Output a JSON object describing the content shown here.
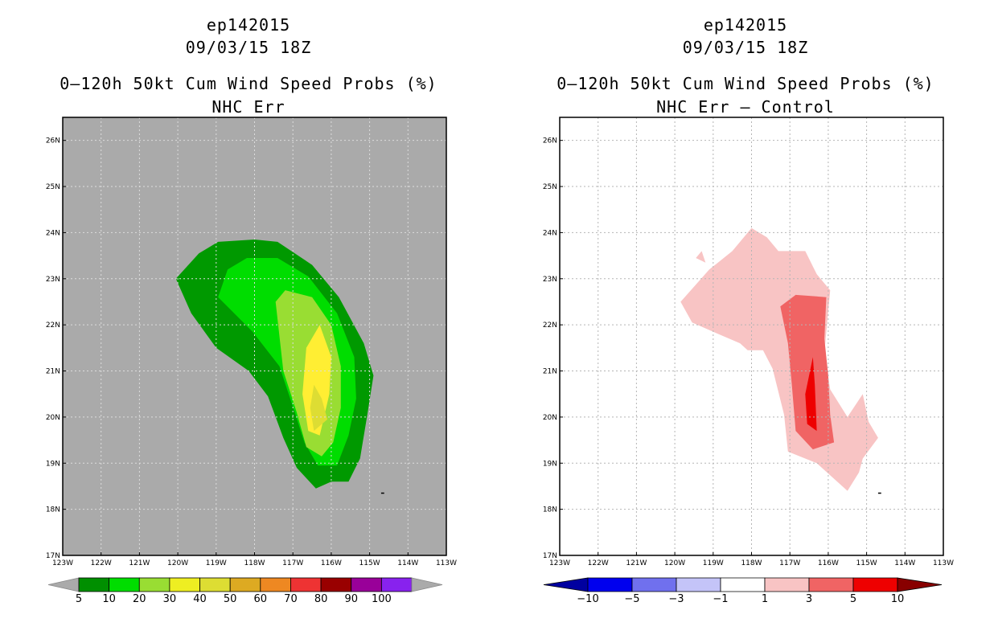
{
  "chart_data": [
    {
      "type": "contour-map",
      "storm_id": "ep142015",
      "datetime": "09/03/15 18Z",
      "title": "0–120h 50kt Cum Wind Speed Probs (%)",
      "subtitle": "NHC Err",
      "xlim": [
        -123,
        -113
      ],
      "ylim": [
        17,
        26.5
      ],
      "x_ticks": [
        {
          "v": -123,
          "label": "123W"
        },
        {
          "v": -122,
          "label": "122W"
        },
        {
          "v": -121,
          "label": "121W"
        },
        {
          "v": -120,
          "label": "120W"
        },
        {
          "v": -119,
          "label": "119W"
        },
        {
          "v": -118,
          "label": "118W"
        },
        {
          "v": -117,
          "label": "117W"
        },
        {
          "v": -116,
          "label": "116W"
        },
        {
          "v": -115,
          "label": "115W"
        },
        {
          "v": -114,
          "label": "114W"
        },
        {
          "v": -113,
          "label": "113W"
        }
      ],
      "y_ticks": [
        {
          "v": 17,
          "label": "17N"
        },
        {
          "v": 18,
          "label": "18N"
        },
        {
          "v": 19,
          "label": "19N"
        },
        {
          "v": 20,
          "label": "20N"
        },
        {
          "v": 21,
          "label": "21N"
        },
        {
          "v": 22,
          "label": "22N"
        },
        {
          "v": 23,
          "label": "23N"
        },
        {
          "v": 24,
          "label": "24N"
        },
        {
          "v": 25,
          "label": "25N"
        },
        {
          "v": 26,
          "label": "26N"
        }
      ],
      "background": "#aaaaaa",
      "regions": [
        {
          "level": 5,
          "color": "#009900",
          "points": [
            [
              -120.05,
              23.0
            ],
            [
              -119.45,
              23.55
            ],
            [
              -118.95,
              23.8
            ],
            [
              -118.0,
              23.85
            ],
            [
              -117.4,
              23.8
            ],
            [
              -116.5,
              23.3
            ],
            [
              -115.8,
              22.6
            ],
            [
              -115.15,
              21.6
            ],
            [
              -114.9,
              20.9
            ],
            [
              -115.05,
              20.1
            ],
            [
              -115.25,
              19.1
            ],
            [
              -115.55,
              18.6
            ],
            [
              -116.0,
              18.6
            ],
            [
              -116.4,
              18.45
            ],
            [
              -116.9,
              18.9
            ],
            [
              -117.25,
              19.55
            ],
            [
              -117.65,
              20.45
            ],
            [
              -118.15,
              21.0
            ],
            [
              -119.0,
              21.5
            ],
            [
              -119.65,
              22.25
            ],
            [
              -120.05,
              23.0
            ]
          ]
        },
        {
          "level": 10,
          "color": "#00dd00",
          "points": [
            [
              -118.95,
              22.6
            ],
            [
              -118.7,
              23.2
            ],
            [
              -118.2,
              23.45
            ],
            [
              -117.4,
              23.45
            ],
            [
              -116.6,
              23.05
            ],
            [
              -115.85,
              22.25
            ],
            [
              -115.4,
              21.3
            ],
            [
              -115.35,
              20.4
            ],
            [
              -115.55,
              19.6
            ],
            [
              -115.85,
              18.95
            ],
            [
              -116.35,
              18.95
            ],
            [
              -116.7,
              19.45
            ],
            [
              -116.95,
              20.1
            ],
            [
              -117.35,
              21.1
            ],
            [
              -118.05,
              21.85
            ],
            [
              -118.95,
              22.6
            ]
          ]
        },
        {
          "level": 20,
          "color": "#99dd33",
          "points": [
            [
              -117.45,
              22.5
            ],
            [
              -117.2,
              22.75
            ],
            [
              -116.5,
              22.6
            ],
            [
              -116.0,
              22.0
            ],
            [
              -115.75,
              21.1
            ],
            [
              -115.75,
              20.2
            ],
            [
              -115.95,
              19.45
            ],
            [
              -116.25,
              19.15
            ],
            [
              -116.65,
              19.35
            ],
            [
              -116.9,
              20.1
            ],
            [
              -117.25,
              21.0
            ],
            [
              -117.45,
              22.5
            ]
          ]
        },
        {
          "level": 30,
          "color": "#ffee33",
          "points": [
            [
              -116.65,
              21.5
            ],
            [
              -116.3,
              22.0
            ],
            [
              -116.0,
              21.3
            ],
            [
              -116.05,
              20.5
            ],
            [
              -116.3,
              19.6
            ],
            [
              -116.6,
              19.7
            ],
            [
              -116.75,
              20.5
            ],
            [
              -116.65,
              21.5
            ]
          ]
        },
        {
          "level": 40,
          "color": "#dddd33",
          "points": [
            [
              -116.45,
              20.7
            ],
            [
              -116.25,
              20.4
            ],
            [
              -116.1,
              19.95
            ],
            [
              -116.45,
              19.7
            ],
            [
              -116.55,
              20.2
            ],
            [
              -116.45,
              20.7
            ]
          ]
        }
      ],
      "colorbar": {
        "labels": [
          "5",
          "10",
          "20",
          "30",
          "40",
          "50",
          "60",
          "70",
          "80",
          "90",
          "100"
        ],
        "colors": [
          "#008f00",
          "#00dd00",
          "#99dd33",
          "#eeee22",
          "#dddd33",
          "#ddaa22",
          "#ee8822",
          "#ee3333",
          "#990000",
          "#990099",
          "#8822ee"
        ]
      }
    },
    {
      "type": "contour-map",
      "storm_id": "ep142015",
      "datetime": "09/03/15 18Z",
      "title": "0–120h 50kt Cum Wind Speed Probs (%)",
      "subtitle": "NHC Err – Control",
      "xlim": [
        -123,
        -113
      ],
      "ylim": [
        17,
        26.5
      ],
      "x_ticks": [
        {
          "v": -123,
          "label": "123W"
        },
        {
          "v": -122,
          "label": "122W"
        },
        {
          "v": -121,
          "label": "121W"
        },
        {
          "v": -120,
          "label": "120W"
        },
        {
          "v": -119,
          "label": "119W"
        },
        {
          "v": -118,
          "label": "118W"
        },
        {
          "v": -117,
          "label": "117W"
        },
        {
          "v": -116,
          "label": "116W"
        },
        {
          "v": -115,
          "label": "115W"
        },
        {
          "v": -114,
          "label": "114W"
        },
        {
          "v": -113,
          "label": "113W"
        }
      ],
      "y_ticks": [
        {
          "v": 17,
          "label": "17N"
        },
        {
          "v": 18,
          "label": "18N"
        },
        {
          "v": 19,
          "label": "19N"
        },
        {
          "v": 20,
          "label": "20N"
        },
        {
          "v": 21,
          "label": "21N"
        },
        {
          "v": 22,
          "label": "22N"
        },
        {
          "v": 23,
          "label": "23N"
        },
        {
          "v": 24,
          "label": "24N"
        },
        {
          "v": 25,
          "label": "25N"
        },
        {
          "v": 26,
          "label": "26N"
        }
      ],
      "background": "#ffffff",
      "regions": [
        {
          "level": 1,
          "color": "#f8c4c4",
          "points": [
            [
              -119.85,
              22.5
            ],
            [
              -119.1,
              23.2
            ],
            [
              -118.5,
              23.6
            ],
            [
              -118.0,
              24.1
            ],
            [
              -117.6,
              23.9
            ],
            [
              -117.3,
              23.6
            ],
            [
              -116.6,
              23.6
            ],
            [
              -116.3,
              23.1
            ],
            [
              -115.95,
              22.75
            ],
            [
              -116.1,
              21.4
            ],
            [
              -115.95,
              20.6
            ],
            [
              -115.5,
              20.0
            ],
            [
              -115.1,
              20.5
            ],
            [
              -114.95,
              19.9
            ],
            [
              -114.7,
              19.55
            ],
            [
              -115.1,
              19.1
            ],
            [
              -115.2,
              18.8
            ],
            [
              -115.5,
              18.4
            ],
            [
              -116.3,
              19.0
            ],
            [
              -117.05,
              19.25
            ],
            [
              -117.15,
              20.05
            ],
            [
              -117.45,
              21.05
            ],
            [
              -117.7,
              21.45
            ],
            [
              -118.1,
              21.45
            ],
            [
              -118.3,
              21.6
            ],
            [
              -119.0,
              21.85
            ],
            [
              -119.55,
              22.05
            ],
            [
              -119.85,
              22.5
            ]
          ]
        },
        {
          "level": 1,
          "color": "#f8c4c4",
          "points": [
            [
              -119.45,
              23.45
            ],
            [
              -119.3,
              23.6
            ],
            [
              -119.2,
              23.35
            ],
            [
              -119.45,
              23.45
            ]
          ]
        },
        {
          "level": 3,
          "color": "#f06464",
          "points": [
            [
              -117.25,
              22.4
            ],
            [
              -116.85,
              22.65
            ],
            [
              -116.05,
              22.6
            ],
            [
              -116.1,
              21.7
            ],
            [
              -116.0,
              20.9
            ],
            [
              -115.95,
              20.05
            ],
            [
              -115.85,
              19.45
            ],
            [
              -116.4,
              19.3
            ],
            [
              -116.85,
              19.7
            ],
            [
              -116.95,
              20.7
            ],
            [
              -117.05,
              21.6
            ],
            [
              -117.25,
              22.4
            ]
          ]
        },
        {
          "level": 5,
          "color": "#ee0000",
          "points": [
            [
              -116.4,
              21.3
            ],
            [
              -116.35,
              20.7
            ],
            [
              -116.3,
              19.7
            ],
            [
              -116.55,
              19.85
            ],
            [
              -116.6,
              20.5
            ],
            [
              -116.4,
              21.3
            ]
          ]
        }
      ],
      "colorbar": {
        "labels": [
          "−10",
          "−5",
          "−3",
          "−1",
          "1",
          "3",
          "5",
          "10"
        ],
        "colors": [
          "#0000a0",
          "#0000ee",
          "#7070ee",
          "#c4c4f8",
          "#ffffff",
          "#f8c4c4",
          "#f06464",
          "#ee0000",
          "#880000"
        ]
      }
    }
  ]
}
